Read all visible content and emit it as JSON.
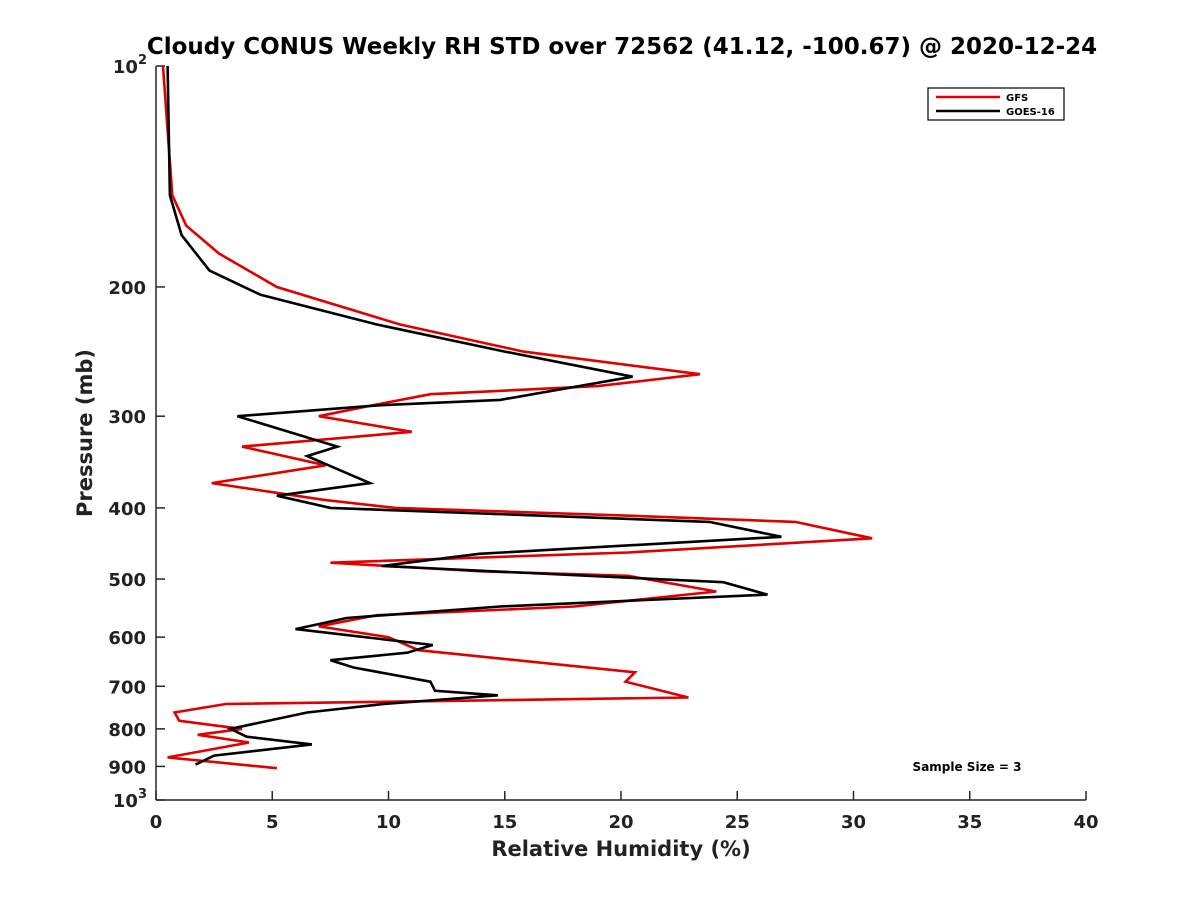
{
  "chart_data": {
    "type": "line",
    "title": "Cloudy CONUS Weekly RH STD over 72562 (41.12, -100.67) @ 2020-12-24",
    "xlabel": "Relative Humidity (%)",
    "ylabel": "Pressure (mb)",
    "xlim": [
      0,
      40
    ],
    "ylim": [
      100,
      1000
    ],
    "y_scale": "log",
    "y_reversed": true,
    "x_ticks": [
      "0",
      "5",
      "10",
      "15",
      "20",
      "25",
      "30",
      "35",
      "40"
    ],
    "y_ticks": [
      {
        "value": 100,
        "label": "10",
        "sup": "2"
      },
      {
        "value": 200,
        "label": "200"
      },
      {
        "value": 300,
        "label": "300"
      },
      {
        "value": 400,
        "label": "400"
      },
      {
        "value": 500,
        "label": "500"
      },
      {
        "value": 600,
        "label": "600"
      },
      {
        "value": 700,
        "label": "700"
      },
      {
        "value": 800,
        "label": "800"
      },
      {
        "value": 900,
        "label": "900"
      },
      {
        "value": 1000,
        "label": "10",
        "sup": "3"
      }
    ],
    "grid": false,
    "legend_position": "top-right",
    "annotation": "Sample Size = 3",
    "series": [
      {
        "name": "GFS",
        "color": "#e00000",
        "points": [
          [
            0.3,
            100
          ],
          [
            0.7,
            150
          ],
          [
            1.3,
            165
          ],
          [
            2.7,
            180
          ],
          [
            5.2,
            200
          ],
          [
            10.5,
            225
          ],
          [
            15.8,
            245
          ],
          [
            23.4,
            263
          ],
          [
            19.0,
            273
          ],
          [
            11.8,
            280
          ],
          [
            9.3,
            290
          ],
          [
            7.0,
            300
          ],
          [
            11.0,
            315
          ],
          [
            3.7,
            330
          ],
          [
            7.3,
            350
          ],
          [
            2.4,
            370
          ],
          [
            7.2,
            390
          ],
          [
            10.3,
            400
          ],
          [
            20.5,
            410
          ],
          [
            27.5,
            418
          ],
          [
            30.8,
            440
          ],
          [
            20.3,
            460
          ],
          [
            7.5,
            475
          ],
          [
            14.0,
            488
          ],
          [
            20.3,
            495
          ],
          [
            24.1,
            520
          ],
          [
            18.0,
            545
          ],
          [
            9.5,
            560
          ],
          [
            7.0,
            580
          ],
          [
            10.0,
            600
          ],
          [
            11.3,
            625
          ],
          [
            20.6,
            670
          ],
          [
            20.2,
            690
          ],
          [
            22.9,
            725
          ],
          [
            3.0,
            740
          ],
          [
            0.8,
            760
          ],
          [
            1.0,
            780
          ],
          [
            3.7,
            800
          ],
          [
            1.8,
            815
          ],
          [
            4.0,
            835
          ],
          [
            1.8,
            860
          ],
          [
            0.5,
            875
          ],
          [
            5.2,
            905
          ]
        ]
      },
      {
        "name": "GOES-16",
        "color": "#000000",
        "points": [
          [
            0.5,
            100
          ],
          [
            0.6,
            150
          ],
          [
            1.1,
            170
          ],
          [
            2.3,
            190
          ],
          [
            4.5,
            205
          ],
          [
            9.5,
            225
          ],
          [
            15.0,
            245
          ],
          [
            20.5,
            265
          ],
          [
            14.8,
            285
          ],
          [
            9.5,
            290
          ],
          [
            3.5,
            300
          ],
          [
            7.8,
            330
          ],
          [
            6.5,
            340
          ],
          [
            9.2,
            370
          ],
          [
            5.2,
            385
          ],
          [
            7.5,
            400
          ],
          [
            23.8,
            418
          ],
          [
            26.9,
            438
          ],
          [
            13.9,
            462
          ],
          [
            9.7,
            480
          ],
          [
            24.4,
            505
          ],
          [
            26.3,
            525
          ],
          [
            14.8,
            545
          ],
          [
            8.2,
            565
          ],
          [
            6.0,
            585
          ],
          [
            11.9,
            615
          ],
          [
            10.8,
            630
          ],
          [
            7.5,
            645
          ],
          [
            8.5,
            660
          ],
          [
            11.8,
            690
          ],
          [
            12.0,
            710
          ],
          [
            14.7,
            720
          ],
          [
            9.8,
            740
          ],
          [
            6.5,
            760
          ],
          [
            3.2,
            800
          ],
          [
            3.9,
            820
          ],
          [
            6.7,
            840
          ],
          [
            2.5,
            870
          ],
          [
            1.7,
            895
          ]
        ]
      }
    ]
  }
}
